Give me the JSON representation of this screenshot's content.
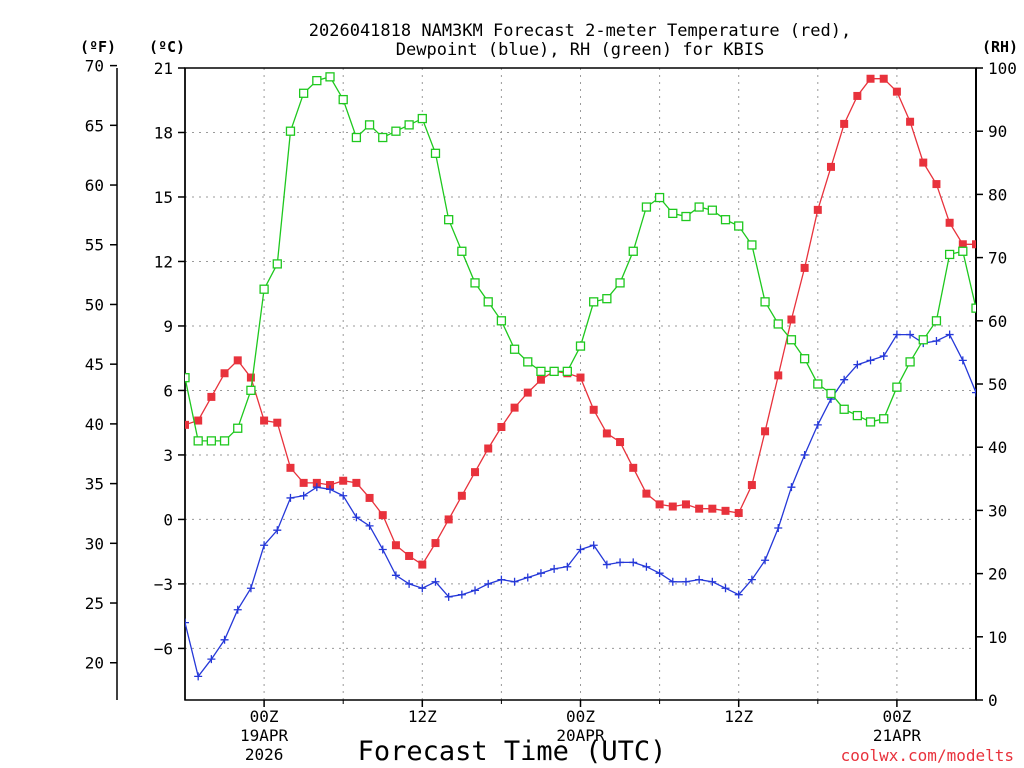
{
  "chart_data": {
    "type": "line",
    "title_line1": "2026041818 NAM3KM Forecast 2-meter Temperature (red),",
    "title_line2": "Dewpoint (blue), RH (green) for KBIS",
    "xlabel": "Forecast Time (UTC)",
    "credit": "coolwx.com/modelts",
    "units": {
      "f": "(ºF)",
      "c": "(ºC)",
      "rh": "(RH)"
    },
    "x_hours_range": [
      -6,
      54
    ],
    "x_ticks": [
      {
        "hour": 0,
        "label1": "00Z",
        "label2": "19APR",
        "label3": "2026"
      },
      {
        "hour": 12,
        "label1": "12Z",
        "label2": "",
        "label3": ""
      },
      {
        "hour": 24,
        "label1": "00Z",
        "label2": "20APR",
        "label3": ""
      },
      {
        "hour": 36,
        "label1": "12Z",
        "label2": "",
        "label3": ""
      },
      {
        "hour": 48,
        "label1": "00Z",
        "label2": "21APR",
        "label3": ""
      }
    ],
    "celsius_axis": {
      "min": -8.4,
      "max": 21,
      "ticks": [
        21,
        18,
        15,
        12,
        9,
        6,
        3,
        0,
        -3,
        -6
      ]
    },
    "fahrenheit_ticks": [
      70,
      65,
      60,
      55,
      50,
      45,
      40,
      35,
      30,
      25,
      20
    ],
    "rh_axis": {
      "min": 0,
      "max": 100,
      "ticks": [
        100,
        90,
        80,
        70,
        60,
        50,
        40,
        30,
        20,
        10,
        0
      ]
    },
    "series": [
      {
        "name": "Temperature",
        "units": "C",
        "color": "#e8323c",
        "marker": "filled-square",
        "x": [
          -6,
          -5,
          -4,
          -3,
          -2,
          -1,
          0,
          1,
          2,
          3,
          4,
          5,
          6,
          7,
          8,
          9,
          10,
          11,
          12,
          13,
          14,
          15,
          16,
          17,
          18,
          19,
          20,
          21,
          22,
          23,
          24,
          25,
          26,
          27,
          28,
          29,
          30,
          31,
          32,
          33,
          34,
          35,
          36,
          37,
          38,
          39,
          40,
          41,
          42,
          43,
          44,
          45,
          46,
          47,
          48,
          49,
          50,
          51,
          52,
          53,
          54
        ],
        "values": [
          4.4,
          4.6,
          5.7,
          6.8,
          7.4,
          6.6,
          4.6,
          4.5,
          2.4,
          1.7,
          1.7,
          1.6,
          1.8,
          1.7,
          1.0,
          0.2,
          -1.2,
          -1.7,
          -2.1,
          -1.1,
          0.0,
          1.1,
          2.2,
          3.3,
          4.3,
          5.2,
          5.9,
          6.5,
          6.9,
          6.8,
          6.6,
          5.1,
          4.0,
          3.6,
          2.4,
          1.2,
          0.7,
          0.6,
          0.7,
          0.5,
          0.5,
          0.4,
          0.3,
          1.6,
          4.1,
          6.7,
          9.3,
          11.7,
          14.4,
          16.4,
          18.4,
          19.7,
          20.5,
          20.5,
          19.9,
          18.5,
          16.6,
          15.6,
          13.8,
          12.8,
          12.8
        ]
      },
      {
        "name": "Dewpoint",
        "units": "C",
        "color": "#2538d8",
        "marker": "plus",
        "x": [
          -6,
          -5,
          -4,
          -3,
          -2,
          -1,
          0,
          1,
          2,
          3,
          4,
          5,
          6,
          7,
          8,
          9,
          10,
          11,
          12,
          13,
          14,
          15,
          16,
          17,
          18,
          19,
          20,
          21,
          22,
          23,
          24,
          25,
          26,
          27,
          28,
          29,
          30,
          31,
          32,
          33,
          34,
          35,
          36,
          37,
          38,
          39,
          40,
          41,
          42,
          43,
          44,
          45,
          46,
          47,
          48,
          49,
          50,
          51,
          52,
          53,
          54
        ],
        "values": [
          -4.8,
          -7.3,
          -6.5,
          -5.6,
          -4.2,
          -3.2,
          -1.2,
          -0.5,
          1.0,
          1.1,
          1.5,
          1.4,
          1.1,
          0.1,
          -0.3,
          -1.4,
          -2.6,
          -3.0,
          -3.2,
          -2.9,
          -3.6,
          -3.5,
          -3.3,
          -3.0,
          -2.8,
          -2.9,
          -2.7,
          -2.5,
          -2.3,
          -2.2,
          -1.4,
          -1.2,
          -2.1,
          -2.0,
          -2.0,
          -2.2,
          -2.5,
          -2.9,
          -2.9,
          -2.8,
          -2.9,
          -3.2,
          -3.5,
          -2.8,
          -1.9,
          -0.4,
          1.5,
          3.0,
          4.4,
          5.6,
          6.5,
          7.2,
          7.4,
          7.6,
          8.6,
          8.6,
          8.2,
          8.3,
          8.6,
          7.4,
          5.9
        ]
      },
      {
        "name": "RH",
        "units": "%",
        "color": "#1ec81e",
        "marker": "open-square",
        "x": [
          -6,
          -5,
          -4,
          -3,
          -2,
          -1,
          0,
          1,
          2,
          3,
          4,
          5,
          6,
          7,
          8,
          9,
          10,
          11,
          12,
          13,
          14,
          15,
          16,
          17,
          18,
          19,
          20,
          21,
          22,
          23,
          24,
          25,
          26,
          27,
          28,
          29,
          30,
          31,
          32,
          33,
          34,
          35,
          36,
          37,
          38,
          39,
          40,
          41,
          42,
          43,
          44,
          45,
          46,
          47,
          48,
          49,
          50,
          51,
          52,
          53,
          54
        ],
        "values": [
          51,
          41,
          41,
          41,
          43,
          49,
          65,
          69,
          90,
          96,
          98,
          98.6,
          95,
          89,
          91,
          89,
          90,
          91,
          92,
          86.5,
          76,
          71,
          66,
          63,
          60,
          55.5,
          53.5,
          52,
          52,
          52,
          56,
          63,
          63.5,
          66,
          71,
          78,
          79.5,
          77,
          76.5,
          78,
          77.5,
          76,
          75,
          72,
          63,
          59.5,
          57,
          54,
          50,
          48.5,
          46,
          45,
          44,
          44.5,
          49.5,
          53.5,
          57,
          60,
          70.5,
          71,
          62
        ]
      }
    ]
  }
}
